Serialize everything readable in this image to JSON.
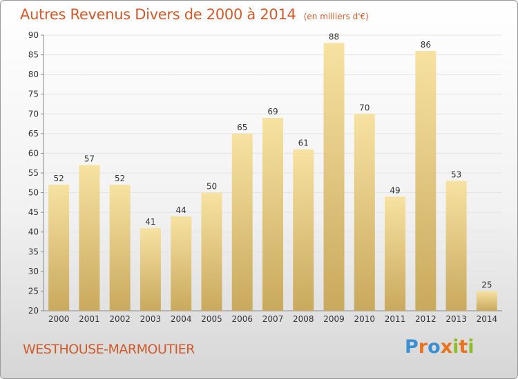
{
  "header": {
    "title": "Autres Revenus Divers de 2000 à 2014",
    "unit": "(en milliers d'€)"
  },
  "footer": {
    "location": "WESTHOUSE-MARMOUTIER",
    "logo_text": "Proxiti"
  },
  "colors": {
    "title": "#d05a2a",
    "bar_light": "#f7e2a2",
    "bar_dark": "#c9a95d",
    "logo_letters": [
      "#3a8fd1",
      "#e8731c",
      "#3a8fd1",
      "#e8731c",
      "#8cbf26",
      "#e8731c",
      "#8cbf26"
    ]
  },
  "chart_data": {
    "type": "bar",
    "categories": [
      "2000",
      "2001",
      "2002",
      "2003",
      "2004",
      "2005",
      "2006",
      "2007",
      "2008",
      "2009",
      "2010",
      "2011",
      "2012",
      "2013",
      "2014"
    ],
    "values": [
      52,
      57,
      52,
      41,
      44,
      50,
      65,
      69,
      61,
      88,
      70,
      49,
      86,
      53,
      25
    ],
    "ylim": [
      20,
      90
    ],
    "yticks": [
      20,
      25,
      30,
      35,
      40,
      45,
      50,
      55,
      60,
      65,
      70,
      75,
      80,
      85,
      90
    ],
    "grid": true,
    "xlabel": "",
    "ylabel": ""
  }
}
